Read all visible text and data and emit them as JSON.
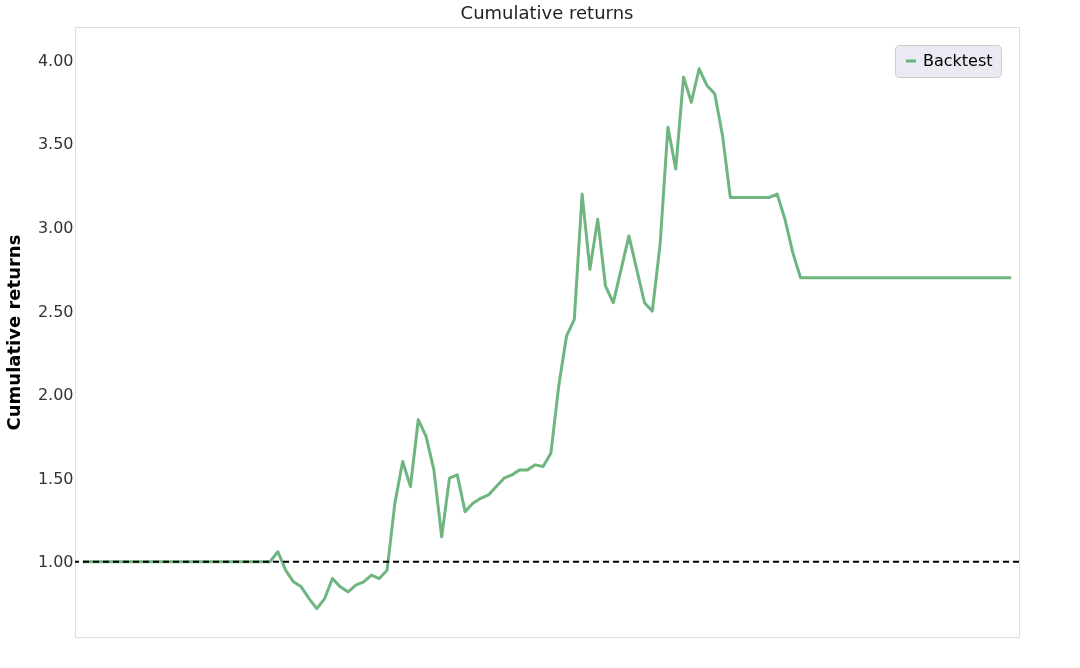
{
  "chart_data": {
    "type": "line",
    "title": "Cumulative returns",
    "ylabel": "Cumulative returns",
    "categories": [
      null,
      null,
      null,
      null,
      null,
      null,
      null,
      null,
      null,
      null,
      null,
      null,
      null,
      null,
      null,
      null,
      null,
      null,
      null,
      null,
      null,
      null,
      null,
      null,
      null,
      null,
      null,
      null,
      null,
      null,
      null,
      null,
      null,
      null,
      null,
      null,
      null,
      null,
      null,
      null,
      null,
      null,
      null,
      null,
      null,
      null,
      null,
      null,
      null,
      null,
      null,
      null,
      null,
      null,
      null,
      null,
      null,
      null,
      null,
      null,
      null,
      null,
      null,
      null,
      null,
      null,
      null,
      null,
      null,
      null,
      null,
      null,
      null,
      null,
      null,
      null,
      null,
      null,
      null,
      null,
      null,
      null,
      null,
      null,
      null,
      null,
      null,
      null,
      null,
      null,
      null,
      null,
      null,
      null,
      null,
      null,
      null,
      null,
      null,
      null,
      null,
      null,
      null,
      null,
      null,
      null,
      null,
      null,
      null,
      null,
      null,
      null,
      null,
      null,
      null,
      null,
      null,
      null,
      null,
      null
    ],
    "series": [
      {
        "name": "Backtest",
        "color": "#55a868",
        "values": [
          1.0,
          1.0,
          1.0,
          1.0,
          1.0,
          1.0,
          1.0,
          1.0,
          1.0,
          1.0,
          1.0,
          1.0,
          1.0,
          1.0,
          1.0,
          1.0,
          1.0,
          1.0,
          1.0,
          1.0,
          1.0,
          1.0,
          1.0,
          1.0,
          1.0,
          1.06,
          0.95,
          0.88,
          0.85,
          0.78,
          0.72,
          0.78,
          0.9,
          0.85,
          0.82,
          0.86,
          0.88,
          0.92,
          0.9,
          0.95,
          1.35,
          1.6,
          1.45,
          1.85,
          1.75,
          1.55,
          1.15,
          1.5,
          1.52,
          1.3,
          1.35,
          1.38,
          1.4,
          1.45,
          1.5,
          1.52,
          1.55,
          1.55,
          1.58,
          1.57,
          1.65,
          2.05,
          2.35,
          2.45,
          3.2,
          2.75,
          3.05,
          2.65,
          2.55,
          2.75,
          2.95,
          2.75,
          2.55,
          2.5,
          2.9,
          3.6,
          3.35,
          3.9,
          3.75,
          3.95,
          3.85,
          3.8,
          3.55,
          3.18,
          3.18,
          3.18,
          3.18,
          3.18,
          3.18,
          3.2,
          3.05,
          2.85,
          2.7,
          2.7,
          2.7,
          2.7,
          2.7,
          2.7,
          2.7,
          2.7,
          2.7,
          2.7,
          2.7,
          2.7,
          2.7,
          2.7,
          2.7,
          2.7,
          2.7,
          2.7,
          2.7,
          2.7,
          2.7,
          2.7,
          2.7,
          2.7,
          2.7,
          2.7,
          2.7,
          2.7
        ]
      }
    ],
    "ylim": [
      0.55,
      4.2
    ],
    "yticks": [
      {
        "value": 1,
        "label": "1.00"
      },
      {
        "value": 1.5,
        "label": "1.50"
      },
      {
        "value": 2,
        "label": "2.00"
      },
      {
        "value": 2.5,
        "label": "2.50"
      },
      {
        "value": 3,
        "label": "3.00"
      },
      {
        "value": 3.5,
        "label": "3.50"
      },
      {
        "value": 4,
        "label": "4.00"
      }
    ],
    "ref_lines": [
      {
        "axis": "y",
        "value": 1,
        "color": "#000000",
        "line_style": "dashed"
      }
    ],
    "grid": "y",
    "legend": "top right",
    "line_style": "solid",
    "marker": "none"
  }
}
